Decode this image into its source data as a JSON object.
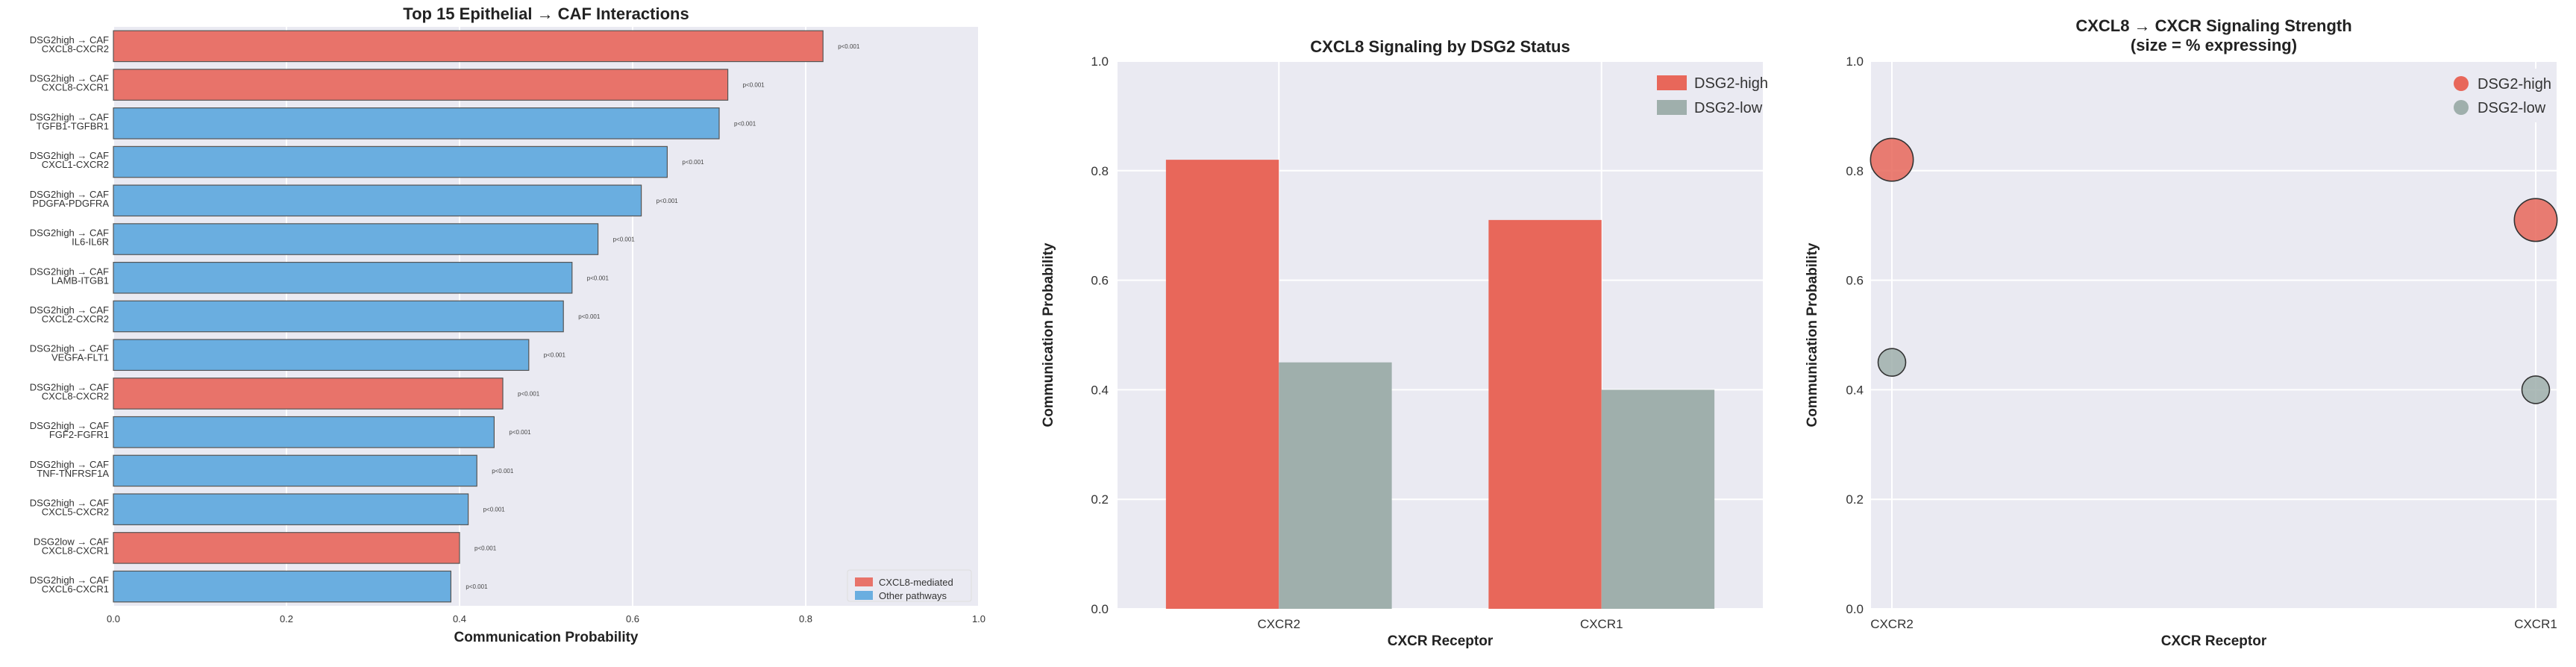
{
  "chart_data": [
    {
      "type": "bar",
      "orientation": "horizontal",
      "title": "Top 15 Epithelial → CAF Interactions",
      "xlabel": "Communication Probability",
      "ylabel": "",
      "xlim": [
        0,
        1.0
      ],
      "xticks": [
        "0.0",
        "0.2",
        "0.4",
        "0.6",
        "0.8",
        "1.0"
      ],
      "grid": true,
      "legend_position": "lower-right",
      "legend": [
        {
          "label": "CXCL8-mediated",
          "color": "#e8736a"
        },
        {
          "label": "Other pathways",
          "color": "#6aaee0"
        }
      ],
      "bars": [
        {
          "label": [
            "DSG2high → CAF",
            "CXCL8-CXCR2"
          ],
          "value": 0.82,
          "group": "CXCL8-mediated",
          "annotation": "p<0.001"
        },
        {
          "label": [
            "DSG2high → CAF",
            "CXCL8-CXCR1"
          ],
          "value": 0.71,
          "group": "CXCL8-mediated",
          "annotation": "p<0.001"
        },
        {
          "label": [
            "DSG2high → CAF",
            "TGFB1-TGFBR1"
          ],
          "value": 0.7,
          "group": "Other pathways",
          "annotation": "p<0.001"
        },
        {
          "label": [
            "DSG2high → CAF",
            "CXCL1-CXCR2"
          ],
          "value": 0.64,
          "group": "Other pathways",
          "annotation": "p<0.001"
        },
        {
          "label": [
            "DSG2high → CAF",
            "PDGFA-PDGFRA"
          ],
          "value": 0.61,
          "group": "Other pathways",
          "annotation": "p<0.001"
        },
        {
          "label": [
            "DSG2high → CAF",
            "IL6-IL6R"
          ],
          "value": 0.56,
          "group": "Other pathways",
          "annotation": "p<0.001"
        },
        {
          "label": [
            "DSG2high → CAF",
            "LAMB-ITGB1"
          ],
          "value": 0.53,
          "group": "Other pathways",
          "annotation": "p<0.001"
        },
        {
          "label": [
            "DSG2high → CAF",
            "CXCL2-CXCR2"
          ],
          "value": 0.52,
          "group": "Other pathways",
          "annotation": "p<0.001"
        },
        {
          "label": [
            "DSG2high → CAF",
            "VEGFA-FLT1"
          ],
          "value": 0.48,
          "group": "Other pathways",
          "annotation": "p<0.001"
        },
        {
          "label": [
            "DSG2high → CAF",
            "CXCL8-CXCR2"
          ],
          "value": 0.45,
          "group": "CXCL8-mediated",
          "annotation": "p<0.001"
        },
        {
          "label": [
            "DSG2high → CAF",
            "FGF2-FGFR1"
          ],
          "value": 0.44,
          "group": "Other pathways",
          "annotation": "p<0.001"
        },
        {
          "label": [
            "DSG2high → CAF",
            "TNF-TNFRSF1A"
          ],
          "value": 0.42,
          "group": "Other pathways",
          "annotation": "p<0.001"
        },
        {
          "label": [
            "DSG2high → CAF",
            "CXCL5-CXCR2"
          ],
          "value": 0.41,
          "group": "Other pathways",
          "annotation": "p<0.001"
        },
        {
          "label": [
            "DSG2low → CAF",
            "CXCL8-CXCR1"
          ],
          "value": 0.4,
          "group": "CXCL8-mediated",
          "annotation": "p<0.001"
        },
        {
          "label": [
            "DSG2high → CAF",
            "CXCL6-CXCR1"
          ],
          "value": 0.39,
          "group": "Other pathways",
          "annotation": "p<0.001"
        }
      ]
    },
    {
      "type": "bar",
      "title": "CXCL8 Signaling by DSG2 Status",
      "xlabel": "CXCR Receptor",
      "ylabel": "Communication Probability",
      "ylim": [
        0,
        1.0
      ],
      "yticks": [
        "0.0",
        "0.2",
        "0.4",
        "0.6",
        "0.8",
        "1.0"
      ],
      "grid": true,
      "legend_position": "top-right",
      "categories": [
        "CXCR2",
        "CXCR1"
      ],
      "series": [
        {
          "name": "DSG2-high",
          "color": "#e8675a",
          "values": [
            0.82,
            0.71
          ]
        },
        {
          "name": "DSG2-low",
          "color": "#9fafac",
          "values": [
            0.45,
            0.4
          ]
        }
      ]
    },
    {
      "type": "scatter",
      "title": [
        "CXCL8 → CXCR Signaling Strength",
        "(size = % expressing)"
      ],
      "xlabel": "CXCR Receptor",
      "ylabel": "Communication Probability",
      "ylim": [
        0,
        1.0
      ],
      "yticks": [
        "0.0",
        "0.2",
        "0.4",
        "0.6",
        "0.8",
        "1.0"
      ],
      "grid": true,
      "legend_position": "top-right",
      "categories": [
        "CXCR2",
        "CXCR1"
      ],
      "series": [
        {
          "name": "DSG2-high",
          "color": "#e8675a",
          "values": [
            0.82,
            0.71
          ],
          "size_pct": [
            60,
            60
          ]
        },
        {
          "name": "DSG2-low",
          "color": "#9fafac",
          "values": [
            0.45,
            0.4
          ],
          "size_pct": [
            25,
            25
          ]
        }
      ]
    }
  ]
}
